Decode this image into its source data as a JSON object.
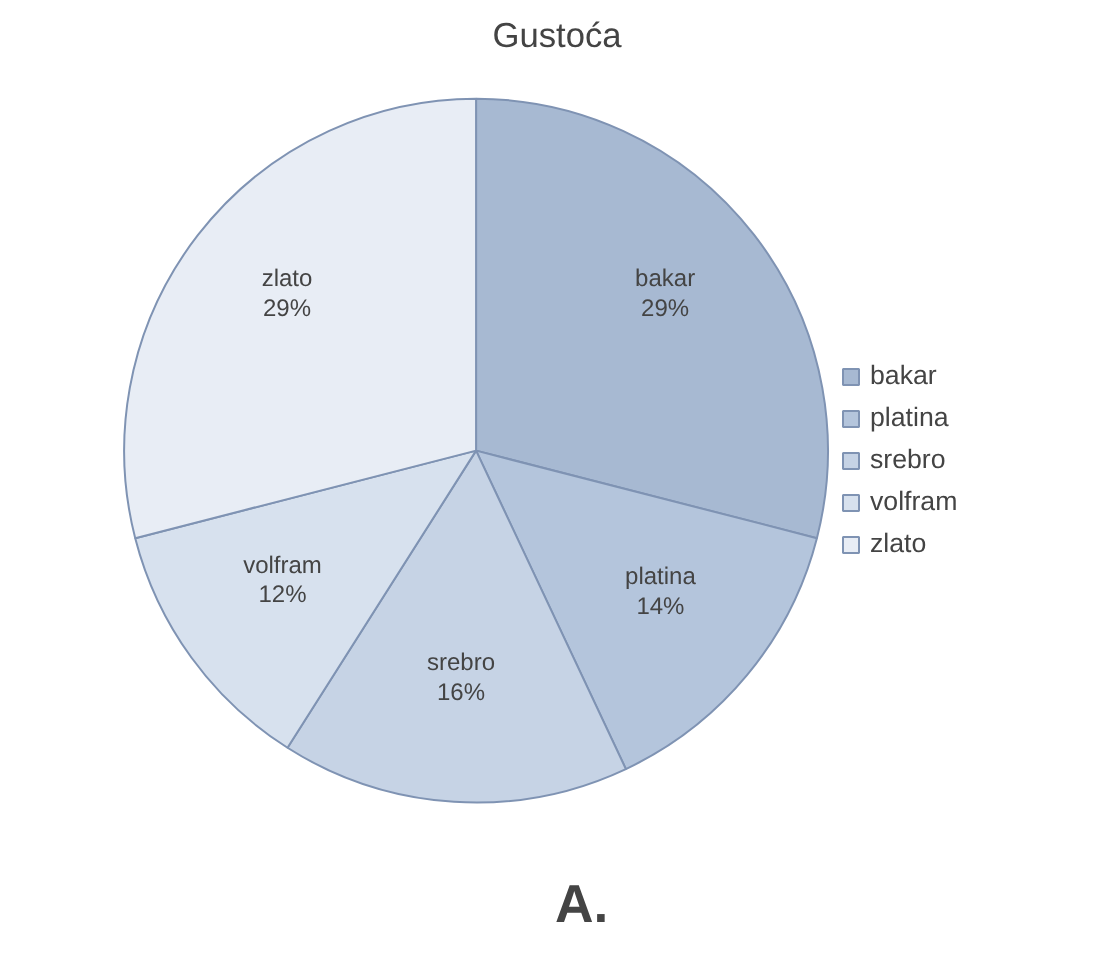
{
  "chart_data": {
    "type": "pie",
    "title": "Gustoća",
    "categories": [
      "bakar",
      "platina",
      "srebro",
      "volfram",
      "zlato"
    ],
    "values": [
      29,
      14,
      16,
      12,
      29
    ],
    "value_labels": [
      "29%",
      "14%",
      "16%",
      "12%",
      "29%"
    ],
    "colors": [
      "#a7b9d2",
      "#b4c5dc",
      "#c6d3e5",
      "#d7e1ee",
      "#e8edf5"
    ],
    "legend": "right",
    "annotations": [
      "A."
    ]
  }
}
